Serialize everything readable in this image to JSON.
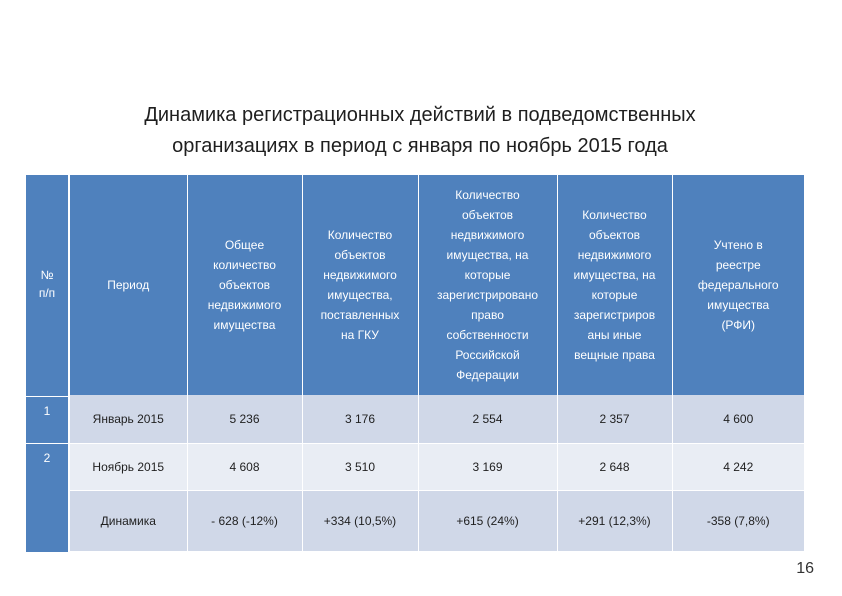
{
  "title": {
    "line1": "Динамика регистрационных действий в подведомственных",
    "line2": "организациях в период с января по ноябрь 2015 года"
  },
  "number_column": {
    "header_line1": "№",
    "header_line2": "п/п",
    "row1": "1",
    "row2": "2"
  },
  "table": {
    "headers": [
      [
        "Период"
      ],
      [
        "Общее",
        "количество",
        "объектов",
        "недвижимого",
        "имущества"
      ],
      [
        "Количество",
        "объектов",
        "недвижимого",
        "имущества,",
        "поставленных",
        "на ГКУ"
      ],
      [
        "Количество",
        "объектов",
        "недвижимого",
        "имущества, на",
        "которые",
        "зарегистрировано",
        "право",
        "собственности",
        "Российской",
        "Федерации"
      ],
      [
        "Количество",
        "объектов",
        "недвижимого",
        "имущества, на",
        "которые",
        "зарегистриров",
        "аны иные",
        "вещные права"
      ],
      [
        "Учтено в",
        "реестре",
        "федерального",
        "имущества",
        "(РФИ)"
      ]
    ],
    "rows": [
      [
        "Январь 2015",
        "5 236",
        "3 176",
        "2 554",
        "2 357",
        "4 600"
      ],
      [
        "Ноябрь 2015",
        "4 608",
        "3 510",
        "3 169",
        "2 648",
        "4 242"
      ],
      [
        "Динамика",
        "- 628 (-12%)",
        "+334 (10,5%)",
        "+615 (24%)",
        "+291 (12,3%)",
        "-358 (7,8%)"
      ]
    ]
  },
  "page_number": "16"
}
